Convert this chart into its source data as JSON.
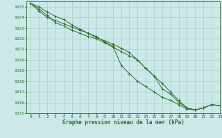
{
  "title": "Graphe pression niveau de la mer (hPa)",
  "background_color": "#cce8e8",
  "grid_color": "#aacccc",
  "line_color": "#2d6e2d",
  "marker_color": "#2d6e2d",
  "xlim": [
    -0.5,
    23
  ],
  "ylim": [
    1015,
    1025.5
  ],
  "xticks": [
    0,
    1,
    2,
    3,
    4,
    5,
    6,
    7,
    8,
    9,
    10,
    11,
    12,
    13,
    14,
    15,
    16,
    17,
    18,
    19,
    20,
    21,
    22,
    23
  ],
  "yticks": [
    1015,
    1016,
    1017,
    1018,
    1019,
    1020,
    1021,
    1022,
    1023,
    1024,
    1025
  ],
  "series": [
    [
      1025.3,
      1025.0,
      1024.5,
      1024.1,
      1023.8,
      1023.3,
      1022.9,
      1022.5,
      1022.1,
      1021.8,
      1021.5,
      1021.1,
      1020.7,
      1020.0,
      1019.2,
      1018.5,
      1017.3,
      1016.8,
      1016.0,
      1015.5,
      1015.3,
      1015.5,
      1015.8,
      1015.7
    ],
    [
      1025.3,
      1024.6,
      1024.0,
      1023.7,
      1023.4,
      1023.1,
      1022.8,
      1022.5,
      1022.2,
      1021.7,
      1021.3,
      1019.5,
      1018.7,
      1018.0,
      1017.5,
      1017.0,
      1016.5,
      1016.2,
      1015.8,
      1015.4,
      1015.3,
      1015.5,
      1015.8,
      1015.7
    ],
    [
      1025.3,
      1024.8,
      1024.2,
      1023.5,
      1023.2,
      1022.8,
      1022.5,
      1022.2,
      1022.0,
      1021.6,
      1021.2,
      1020.8,
      1020.4,
      1020.0,
      1019.2,
      1018.5,
      1017.8,
      1017.0,
      1016.2,
      1015.5,
      1015.3,
      1015.5,
      1015.8,
      1015.7
    ]
  ]
}
